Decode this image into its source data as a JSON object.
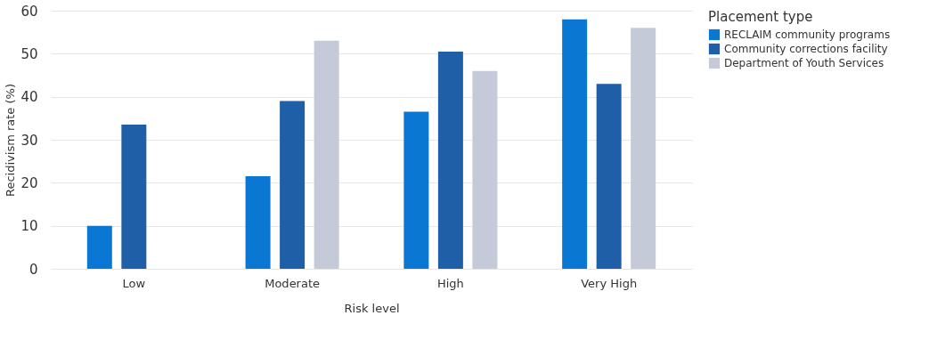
{
  "chart_data": {
    "type": "bar",
    "xlabel": "Risk level",
    "ylabel": "Recidivism rate (%)",
    "legend_title": "Placement type",
    "categories": [
      "Low",
      "Moderate",
      "High",
      "Very High"
    ],
    "series": [
      {
        "name": "RECLAIM community programs",
        "color": "#0a78d2",
        "values": [
          10,
          21.5,
          36.5,
          58
        ]
      },
      {
        "name": "Community corrections facility",
        "color": "#1f5fa8",
        "values": [
          33.5,
          39,
          50.5,
          43
        ]
      },
      {
        "name": "Department of Youth Services",
        "color": "#c4cad8",
        "values": [
          null,
          53,
          46,
          56
        ]
      }
    ],
    "ylim": [
      0,
      60
    ],
    "yticks": [
      0,
      10,
      20,
      30,
      40,
      50,
      60
    ],
    "grid": "y",
    "legend": "top right"
  }
}
